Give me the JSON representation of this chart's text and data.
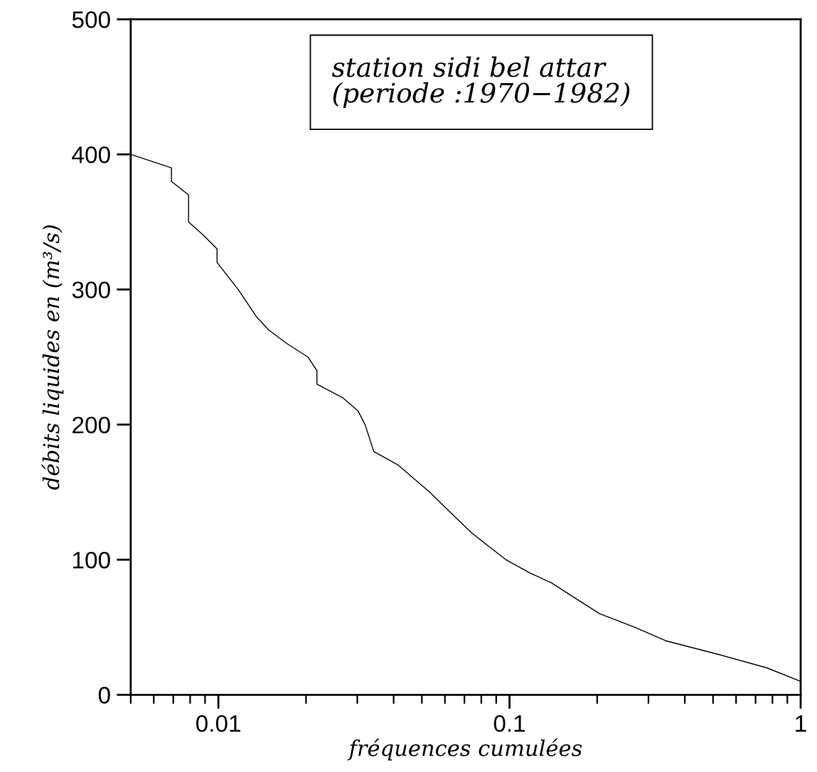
{
  "chart_data": {
    "type": "line",
    "title": "station sidi bel attar",
    "subtitle": "(periode :1970−1982)",
    "xlabel": "fréquences cumulées",
    "ylabel": "débits liquides en (m³/s)",
    "log": "x",
    "xlim": [
      0.005,
      1
    ],
    "xticks": [
      0.01,
      0.1,
      1
    ],
    "ylim": [
      0,
      500
    ],
    "yticks": [
      0,
      100,
      200,
      300,
      400,
      500
    ],
    "grid": false,
    "legend": false,
    "marker": "none",
    "line_style": "solid",
    "series": [
      {
        "color": "#000000",
        "x": [
          0.005,
          0.0069,
          0.0069,
          0.0079,
          0.0079,
          0.0089,
          0.0099,
          0.0099,
          0.0117,
          0.0135,
          0.0149,
          0.0172,
          0.0203,
          0.0218,
          0.0218,
          0.0267,
          0.0302,
          0.0319,
          0.0342,
          0.0415,
          0.0532,
          0.0662,
          0.074,
          0.0847,
          0.0972,
          0.118,
          0.139,
          0.164,
          0.204,
          0.269,
          0.344,
          0.52,
          0.764,
          1.0
        ],
        "values": [
          400,
          390,
          380,
          370,
          350,
          340,
          330,
          320,
          300,
          280,
          270,
          260,
          250,
          240,
          230,
          220,
          210,
          200,
          180,
          170,
          150,
          130,
          120,
          110,
          100,
          90,
          83,
          73,
          60,
          50,
          40,
          30,
          20,
          10
        ]
      }
    ]
  }
}
